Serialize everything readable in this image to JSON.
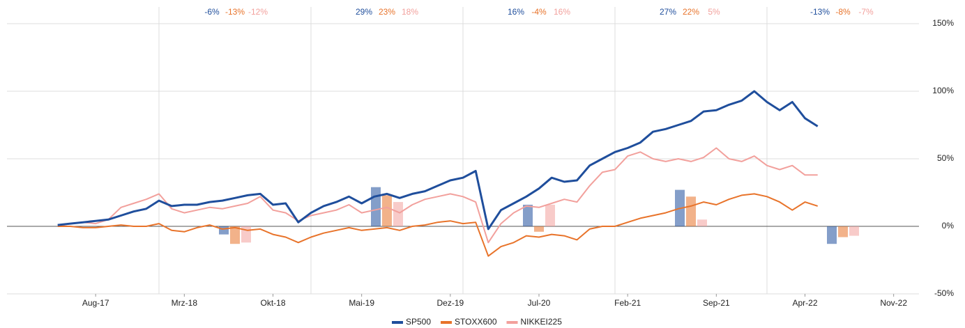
{
  "chart_data": {
    "type": "line",
    "x": [
      "2017-05",
      "2017-06",
      "2017-07",
      "2017-08",
      "2017-09",
      "2017-10",
      "2017-11",
      "2017-12",
      "2018-01",
      "2018-02",
      "2018-03",
      "2018-04",
      "2018-05",
      "2018-06",
      "2018-07",
      "2018-08",
      "2018-09",
      "2018-10",
      "2018-11",
      "2018-12",
      "2019-01",
      "2019-02",
      "2019-03",
      "2019-04",
      "2019-05",
      "2019-06",
      "2019-07",
      "2019-08",
      "2019-09",
      "2019-10",
      "2019-11",
      "2019-12",
      "2020-01",
      "2020-02",
      "2020-03",
      "2020-04",
      "2020-05",
      "2020-06",
      "2020-07",
      "2020-08",
      "2020-09",
      "2020-10",
      "2020-11",
      "2020-12",
      "2021-01",
      "2021-02",
      "2021-03",
      "2021-04",
      "2021-05",
      "2021-06",
      "2021-07",
      "2021-08",
      "2021-09",
      "2021-10",
      "2021-11",
      "2021-12",
      "2022-01",
      "2022-02",
      "2022-03",
      "2022-04",
      "2022-05"
    ],
    "xlim": [
      "2017-01",
      "2023-01"
    ],
    "xticks": [
      {
        "value": "2017-08",
        "label": "Aug-17"
      },
      {
        "value": "2018-03",
        "label": "Mrz-18"
      },
      {
        "value": "2018-10",
        "label": "Okt-18"
      },
      {
        "value": "2019-05",
        "label": "Mai-19"
      },
      {
        "value": "2019-12",
        "label": "Dez-19"
      },
      {
        "value": "2020-07",
        "label": "Jul-20"
      },
      {
        "value": "2021-02",
        "label": "Feb-21"
      },
      {
        "value": "2021-09",
        "label": "Sep-21"
      },
      {
        "value": "2022-04",
        "label": "Apr-22"
      },
      {
        "value": "2022-11",
        "label": "Nov-22"
      }
    ],
    "ylim": [
      -50,
      150
    ],
    "yticks": [
      {
        "value": -50,
        "label": "-50%"
      },
      {
        "value": 0,
        "label": "0%"
      },
      {
        "value": 50,
        "label": "50%"
      },
      {
        "value": 100,
        "label": "100%"
      },
      {
        "value": 150,
        "label": "150%"
      }
    ],
    "grid": true,
    "legend": "bottom",
    "series": [
      {
        "name": "SP500",
        "color": "#1f4e9c",
        "values": [
          1,
          2,
          3,
          4,
          5,
          8,
          11,
          13,
          19,
          15,
          16,
          16,
          18,
          19,
          21,
          23,
          24,
          16,
          17,
          3,
          10,
          15,
          18,
          22,
          17,
          22,
          24,
          21,
          24,
          26,
          30,
          34,
          36,
          41,
          -2,
          12,
          17,
          22,
          28,
          36,
          33,
          34,
          45,
          50,
          55,
          58,
          62,
          70,
          72,
          75,
          78,
          85,
          86,
          90,
          93,
          100,
          92,
          86,
          92,
          80,
          74
        ],
        "annual": {
          "values": [
            -6,
            29,
            16,
            27,
            -13
          ],
          "value_labels": [
            "-6%",
            "29%",
            "16%",
            "27%",
            "-13%"
          ]
        }
      },
      {
        "name": "STOXX600",
        "color": "#e8732a",
        "values": [
          0,
          0,
          -1,
          -1,
          0,
          1,
          0,
          0,
          2,
          -3,
          -4,
          -1,
          1,
          -2,
          -1,
          -3,
          -2,
          -6,
          -8,
          -12,
          -8,
          -5,
          -3,
          -1,
          -3,
          -2,
          -1,
          -3,
          0,
          1,
          3,
          4,
          2,
          3,
          -22,
          -15,
          -12,
          -7,
          -8,
          -6,
          -7,
          -10,
          -2,
          0,
          0,
          3,
          6,
          8,
          10,
          13,
          15,
          18,
          16,
          20,
          23,
          24,
          22,
          18,
          12,
          18,
          15
        ],
        "annual": {
          "values": [
            -13,
            23,
            -4,
            22,
            -8
          ],
          "value_labels": [
            "-13%",
            "23%",
            "-4%",
            "22%",
            "-8%"
          ]
        }
      },
      {
        "name": "NIKKEI225",
        "color": "#f2a09c",
        "values": [
          0,
          2,
          3,
          2,
          5,
          14,
          17,
          20,
          24,
          13,
          10,
          12,
          14,
          13,
          15,
          17,
          22,
          12,
          10,
          4,
          8,
          10,
          12,
          16,
          10,
          12,
          14,
          10,
          16,
          20,
          22,
          24,
          22,
          18,
          -12,
          2,
          10,
          15,
          14,
          17,
          20,
          18,
          30,
          40,
          42,
          52,
          55,
          50,
          48,
          50,
          48,
          51,
          58,
          50,
          48,
          52,
          45,
          42,
          45,
          38,
          38
        ],
        "annual": {
          "values": [
            -12,
            18,
            16,
            5,
            -7
          ],
          "value_labels": [
            "-12%",
            "18%",
            "16%",
            "5%",
            "-7%"
          ]
        }
      }
    ]
  }
}
